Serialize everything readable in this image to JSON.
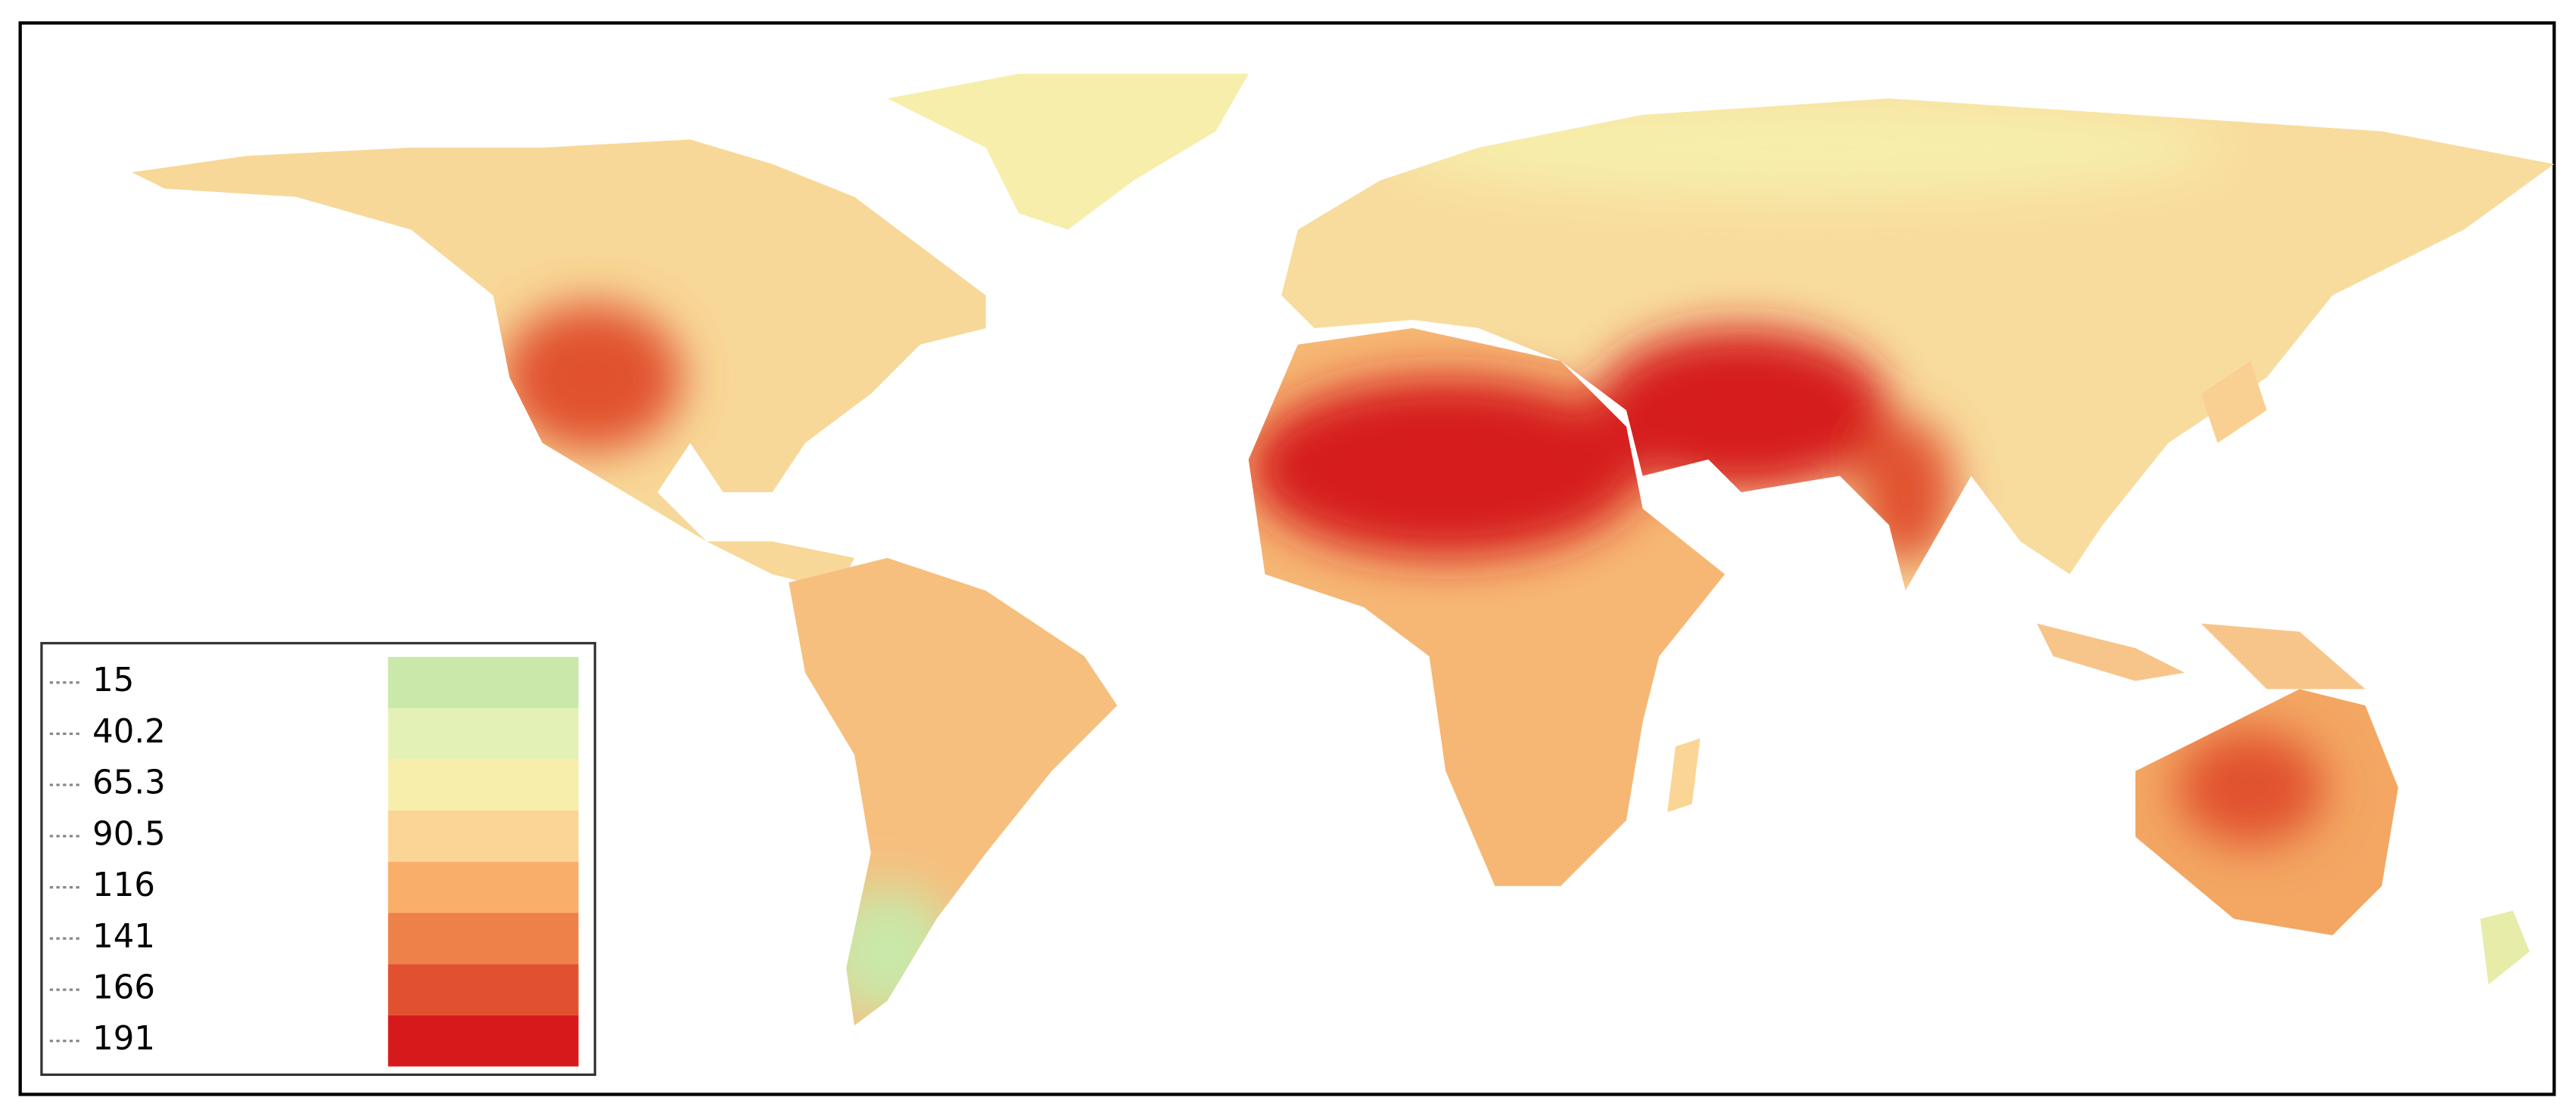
{
  "legend": {
    "items": [
      {
        "label": "15",
        "color": "#c9e8a9"
      },
      {
        "label": "40.2",
        "color": "#e4f1b6"
      },
      {
        "label": "65.3",
        "color": "#f7eeab"
      },
      {
        "label": "90.5",
        "color": "#fbd596"
      },
      {
        "label": "116",
        "color": "#f9ae6a"
      },
      {
        "label": "141",
        "color": "#ee8149"
      },
      {
        "label": "166",
        "color": "#e1512f"
      },
      {
        "label": "191",
        "color": "#d61a1c"
      }
    ]
  }
}
